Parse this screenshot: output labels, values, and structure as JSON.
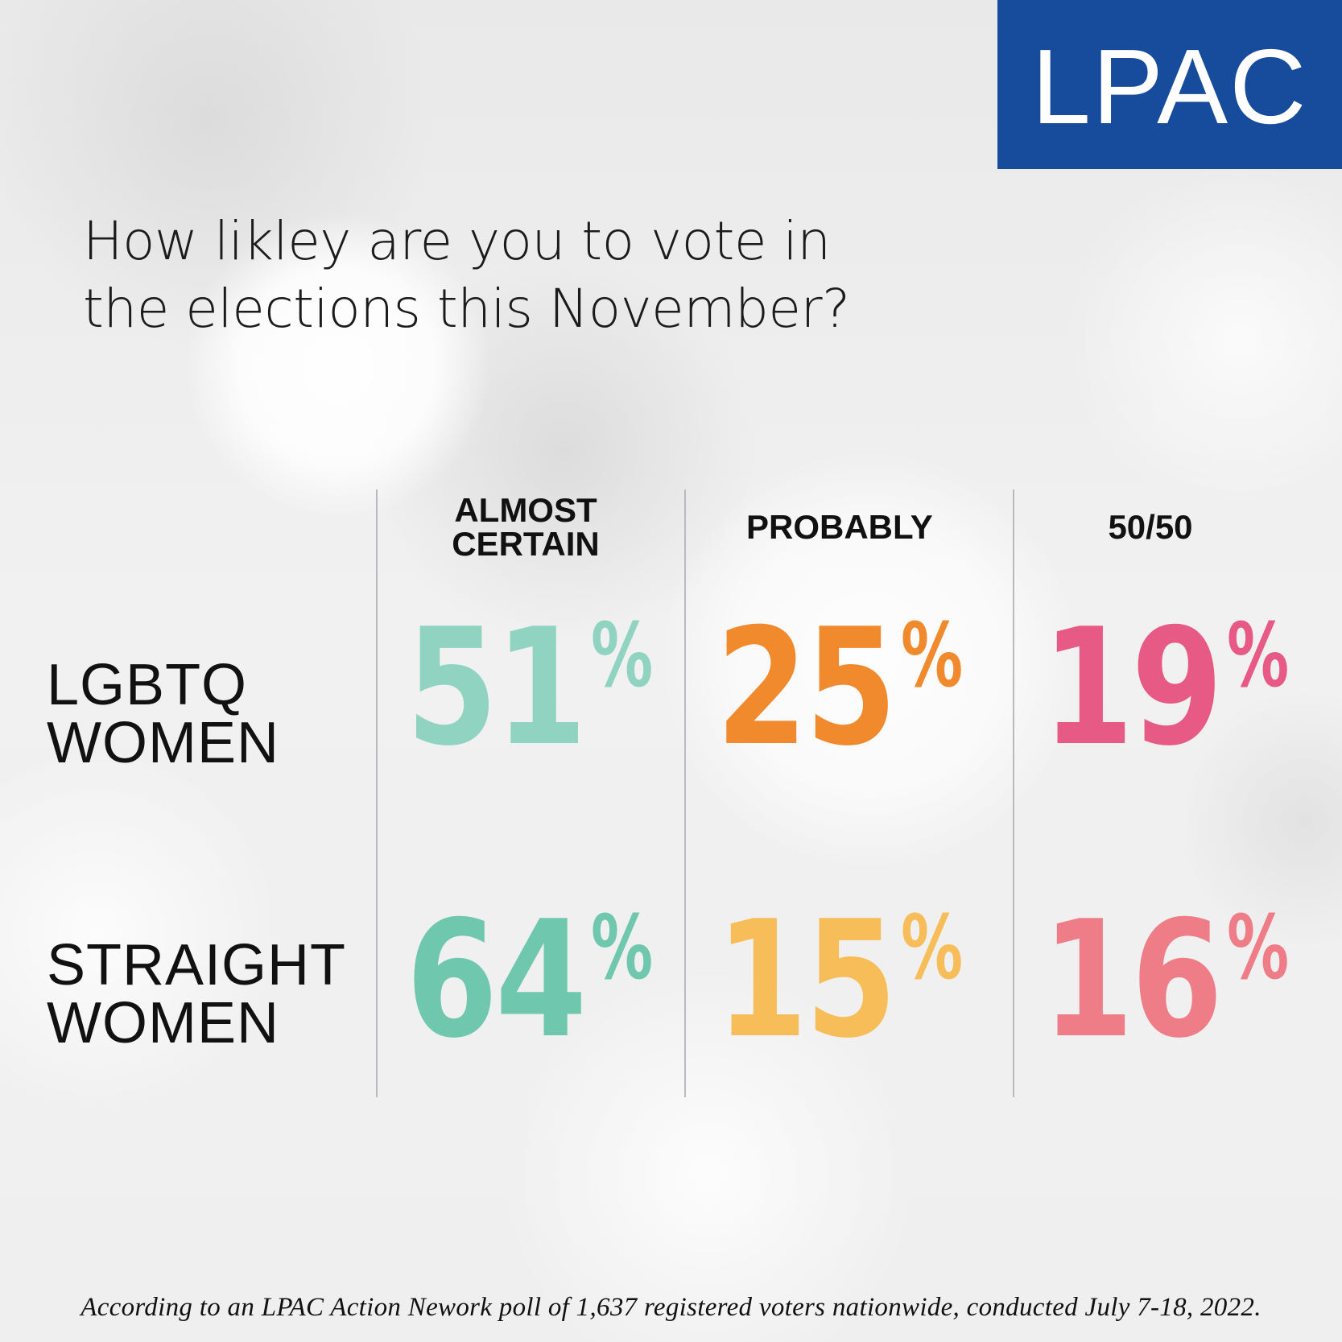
{
  "logo": {
    "text": "LPAC",
    "background": "#174b9b"
  },
  "question": {
    "line1": "How likley are you to vote in",
    "line2": "the elections this November?"
  },
  "footnote": "According to an LPAC Action Nework poll of 1,637 registered voters nationwide, conducted July 7-18, 2022.",
  "chart_data": {
    "type": "table",
    "title": "How likley are you to vote in the elections this November?",
    "columns": [
      {
        "line1": "ALMOST",
        "line2": "CERTAIN"
      },
      {
        "line1": "PROBABLY",
        "line2": ""
      },
      {
        "line1": "50/50",
        "line2": ""
      }
    ],
    "rows": [
      {
        "line1": "LGBTQ",
        "line2": "WOMEN",
        "values": [
          51,
          25,
          19
        ],
        "display": [
          "51",
          "25",
          "19"
        ]
      },
      {
        "line1": "STRAIGHT",
        "line2": "WOMEN",
        "values": [
          64,
          15,
          16
        ],
        "display": [
          "64",
          "15",
          "16"
        ]
      }
    ],
    "unit": "%",
    "colors": [
      [
        "#8fd3c0",
        "#f08a2d",
        "#e75a86"
      ],
      [
        "#6fc7ad",
        "#f6bd58",
        "#ef7d88"
      ]
    ]
  }
}
